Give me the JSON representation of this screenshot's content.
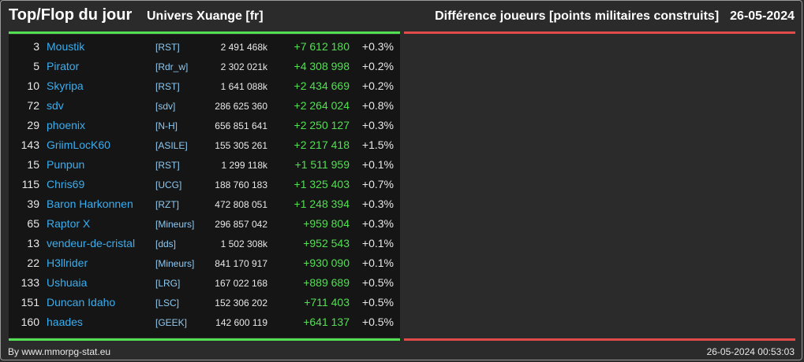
{
  "header": {
    "title": "Top/Flop du jour",
    "subtitle": "Univers Xuange [fr]",
    "ranking_label": "Différence joueurs [points militaires construits]",
    "date": "26-05-2024"
  },
  "colors": {
    "accent_green": "#52e052",
    "accent_red": "#e04a4a",
    "link_blue": "#3aaef0"
  },
  "rows": [
    {
      "rank": "3",
      "name": "Moustik",
      "alliance": "[RST]",
      "points": "2 491 468k",
      "diff": "+7 612 180",
      "pct": "+0.3%"
    },
    {
      "rank": "5",
      "name": "Pirator",
      "alliance": "[Rdr_w]",
      "points": "2 302 021k",
      "diff": "+4 308 998",
      "pct": "+0.2%"
    },
    {
      "rank": "10",
      "name": "Skyripa",
      "alliance": "[RST]",
      "points": "1 641 088k",
      "diff": "+2 434 669",
      "pct": "+0.2%"
    },
    {
      "rank": "72",
      "name": "sdv",
      "alliance": "[sdv]",
      "points": "286 625 360",
      "diff": "+2 264 024",
      "pct": "+0.8%"
    },
    {
      "rank": "29",
      "name": "phoenix",
      "alliance": "[N-H]",
      "points": "656 851 641",
      "diff": "+2 250 127",
      "pct": "+0.3%"
    },
    {
      "rank": "143",
      "name": "GriimLocK60",
      "alliance": "[ASILE]",
      "points": "155 305 261",
      "diff": "+2 217 418",
      "pct": "+1.5%"
    },
    {
      "rank": "15",
      "name": "Punpun",
      "alliance": "[RST]",
      "points": "1 299 118k",
      "diff": "+1 511 959",
      "pct": "+0.1%"
    },
    {
      "rank": "115",
      "name": "Chris69",
      "alliance": "[UCG]",
      "points": "188 760 183",
      "diff": "+1 325 403",
      "pct": "+0.7%"
    },
    {
      "rank": "39",
      "name": "Baron Harkonnen",
      "alliance": "[RZT]",
      "points": "472 808 051",
      "diff": "+1 248 394",
      "pct": "+0.3%"
    },
    {
      "rank": "65",
      "name": "Raptor X",
      "alliance": "[Mineurs]",
      "points": "296 857 042",
      "diff": "+959 804",
      "pct": "+0.3%"
    },
    {
      "rank": "13",
      "name": "vendeur-de-cristal",
      "alliance": "[dds]",
      "points": "1 502 308k",
      "diff": "+952 543",
      "pct": "+0.1%"
    },
    {
      "rank": "22",
      "name": "H3llrider",
      "alliance": "[Mineurs]",
      "points": "841 170 917",
      "diff": "+930 090",
      "pct": "+0.1%"
    },
    {
      "rank": "133",
      "name": "Ushuaia",
      "alliance": "[LRG]",
      "points": "167 022 168",
      "diff": "+889 689",
      "pct": "+0.5%"
    },
    {
      "rank": "151",
      "name": "Duncan Idaho",
      "alliance": "[LSC]",
      "points": "152 306 202",
      "diff": "+711 403",
      "pct": "+0.5%"
    },
    {
      "rank": "160",
      "name": "haades",
      "alliance": "[GEEK]",
      "points": "142 600 119",
      "diff": "+641 137",
      "pct": "+0.5%"
    }
  ],
  "footer": {
    "credit": "By www.mmorpg-stat.eu",
    "timestamp": "26-05-2024 00:53:03"
  }
}
